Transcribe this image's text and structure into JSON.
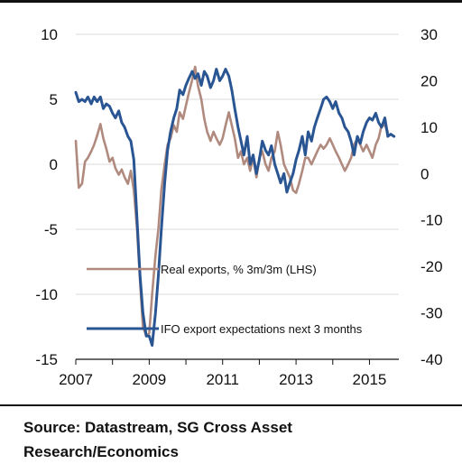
{
  "chart_data": {
    "type": "line",
    "x_ticks": [
      "2007",
      "2009",
      "2011",
      "2013",
      "2015"
    ],
    "xlim": [
      2007,
      2015.8
    ],
    "y_left": {
      "ticks": [
        "10",
        "5",
        "0",
        "-5",
        "-10",
        "-15"
      ],
      "ylim": [
        -15,
        10
      ]
    },
    "y_right": {
      "ticks": [
        "30",
        "20",
        "10",
        "0",
        "-10",
        "-20",
        "-30",
        "-40"
      ],
      "ylim": [
        -40,
        30
      ]
    },
    "grid": true,
    "legend_position": "lower-right",
    "series": [
      {
        "name": "Real exports, % 3m/3m (LHS)",
        "axis": "left",
        "color": "#b08a7e",
        "points": [
          [
            2007.0,
            1.8
          ],
          [
            2007.08,
            -1.8
          ],
          [
            2007.17,
            -1.5
          ],
          [
            2007.25,
            0.2
          ],
          [
            2007.33,
            0.5
          ],
          [
            2007.42,
            1.0
          ],
          [
            2007.5,
            1.5
          ],
          [
            2007.58,
            2.2
          ],
          [
            2007.67,
            3.1
          ],
          [
            2007.75,
            2.0
          ],
          [
            2007.83,
            1.2
          ],
          [
            2007.92,
            0.2
          ],
          [
            2008.0,
            0.5
          ],
          [
            2008.08,
            -0.3
          ],
          [
            2008.17,
            -0.8
          ],
          [
            2008.25,
            -0.4
          ],
          [
            2008.33,
            -1.0
          ],
          [
            2008.42,
            -1.5
          ],
          [
            2008.5,
            -0.5
          ],
          [
            2008.58,
            -2.0
          ],
          [
            2008.67,
            -5.0
          ],
          [
            2008.75,
            -9.0
          ],
          [
            2008.83,
            -12.5
          ],
          [
            2008.92,
            -13.2
          ],
          [
            2009.0,
            -13.0
          ],
          [
            2009.08,
            -10.0
          ],
          [
            2009.17,
            -7.0
          ],
          [
            2009.25,
            -5.0
          ],
          [
            2009.33,
            -2.0
          ],
          [
            2009.42,
            0.0
          ],
          [
            2009.5,
            1.5
          ],
          [
            2009.58,
            2.0
          ],
          [
            2009.67,
            3.0
          ],
          [
            2009.75,
            2.5
          ],
          [
            2009.83,
            4.0
          ],
          [
            2009.92,
            3.5
          ],
          [
            2010.0,
            4.5
          ],
          [
            2010.08,
            5.5
          ],
          [
            2010.17,
            6.5
          ],
          [
            2010.25,
            7.5
          ],
          [
            2010.33,
            6.0
          ],
          [
            2010.42,
            5.0
          ],
          [
            2010.5,
            3.5
          ],
          [
            2010.58,
            2.5
          ],
          [
            2010.67,
            1.8
          ],
          [
            2010.75,
            2.5
          ],
          [
            2010.83,
            2.0
          ],
          [
            2010.92,
            1.5
          ],
          [
            2011.0,
            2.0
          ],
          [
            2011.08,
            3.0
          ],
          [
            2011.17,
            4.0
          ],
          [
            2011.25,
            3.0
          ],
          [
            2011.33,
            2.0
          ],
          [
            2011.42,
            0.5
          ],
          [
            2011.5,
            1.0
          ],
          [
            2011.58,
            0.0
          ],
          [
            2011.67,
            0.5
          ],
          [
            2011.75,
            -0.5
          ],
          [
            2011.83,
            0.5
          ],
          [
            2011.92,
            -1.0
          ],
          [
            2012.0,
            0.5
          ],
          [
            2012.08,
            1.0
          ],
          [
            2012.17,
            0.0
          ],
          [
            2012.25,
            -0.5
          ],
          [
            2012.33,
            0.5
          ],
          [
            2012.42,
            1.0
          ],
          [
            2012.5,
            2.5
          ],
          [
            2012.58,
            1.5
          ],
          [
            2012.67,
            0.0
          ],
          [
            2012.75,
            -0.5
          ],
          [
            2012.83,
            -1.0
          ],
          [
            2012.92,
            -2.0
          ],
          [
            2013.0,
            -2.2
          ],
          [
            2013.08,
            -1.5
          ],
          [
            2013.17,
            -0.5
          ],
          [
            2013.25,
            0.5
          ],
          [
            2013.33,
            0.5
          ],
          [
            2013.42,
            0.0
          ],
          [
            2013.5,
            0.5
          ],
          [
            2013.58,
            1.0
          ],
          [
            2013.67,
            1.5
          ],
          [
            2013.75,
            1.2
          ],
          [
            2013.83,
            1.5
          ],
          [
            2013.92,
            2.0
          ],
          [
            2014.0,
            1.5
          ],
          [
            2014.08,
            1.0
          ],
          [
            2014.17,
            0.5
          ],
          [
            2014.25,
            0.0
          ],
          [
            2014.33,
            -0.5
          ],
          [
            2014.42,
            0.0
          ],
          [
            2014.5,
            0.5
          ],
          [
            2014.58,
            1.5
          ],
          [
            2014.67,
            2.0
          ],
          [
            2014.75,
            1.5
          ],
          [
            2014.83,
            1.0
          ],
          [
            2014.92,
            1.5
          ],
          [
            2015.0,
            1.0
          ],
          [
            2015.08,
            0.5
          ],
          [
            2015.17,
            1.5
          ],
          [
            2015.25,
            2.0
          ],
          [
            2015.33,
            3.0
          ],
          [
            2015.42,
            3.0
          ],
          [
            2015.5,
            2.5
          ]
        ]
      },
      {
        "name": "IFO export expectations next 3 months",
        "axis": "right",
        "color": "#2a5593",
        "points": [
          [
            2007.0,
            17.5
          ],
          [
            2007.08,
            15.5
          ],
          [
            2007.17,
            16.0
          ],
          [
            2007.25,
            15.5
          ],
          [
            2007.33,
            16.5
          ],
          [
            2007.42,
            15.0
          ],
          [
            2007.5,
            16.5
          ],
          [
            2007.58,
            15.5
          ],
          [
            2007.67,
            16.5
          ],
          [
            2007.75,
            14.0
          ],
          [
            2007.83,
            15.0
          ],
          [
            2007.92,
            14.5
          ],
          [
            2008.0,
            13.0
          ],
          [
            2008.08,
            12.0
          ],
          [
            2008.17,
            13.5
          ],
          [
            2008.25,
            11.0
          ],
          [
            2008.33,
            10.0
          ],
          [
            2008.42,
            8.0
          ],
          [
            2008.5,
            7.0
          ],
          [
            2008.58,
            3.0
          ],
          [
            2008.67,
            -10.0
          ],
          [
            2008.75,
            -22.0
          ],
          [
            2008.83,
            -30.0
          ],
          [
            2008.92,
            -35.0
          ],
          [
            2009.0,
            -35.0
          ],
          [
            2009.08,
            -37.0
          ],
          [
            2009.17,
            -30.0
          ],
          [
            2009.25,
            -22.0
          ],
          [
            2009.33,
            -12.0
          ],
          [
            2009.42,
            -2.0
          ],
          [
            2009.5,
            5.0
          ],
          [
            2009.58,
            9.0
          ],
          [
            2009.67,
            12.0
          ],
          [
            2009.75,
            14.0
          ],
          [
            2009.83,
            18.0
          ],
          [
            2009.92,
            17.0
          ],
          [
            2010.0,
            19.0
          ],
          [
            2010.08,
            20.5
          ],
          [
            2010.17,
            22.0
          ],
          [
            2010.25,
            20.5
          ],
          [
            2010.33,
            21.5
          ],
          [
            2010.42,
            19.0
          ],
          [
            2010.5,
            22.0
          ],
          [
            2010.58,
            21.0
          ],
          [
            2010.67,
            18.5
          ],
          [
            2010.75,
            20.0
          ],
          [
            2010.83,
            22.5
          ],
          [
            2010.92,
            20.0
          ],
          [
            2011.0,
            21.0
          ],
          [
            2011.08,
            22.5
          ],
          [
            2011.17,
            21.0
          ],
          [
            2011.25,
            18.0
          ],
          [
            2011.33,
            14.0
          ],
          [
            2011.42,
            10.0
          ],
          [
            2011.5,
            7.0
          ],
          [
            2011.58,
            4.0
          ],
          [
            2011.67,
            8.0
          ],
          [
            2011.75,
            2.0
          ],
          [
            2011.83,
            4.0
          ],
          [
            2011.92,
            0.0
          ],
          [
            2012.0,
            3.0
          ],
          [
            2012.08,
            7.0
          ],
          [
            2012.17,
            5.0
          ],
          [
            2012.25,
            4.0
          ],
          [
            2012.33,
            6.0
          ],
          [
            2012.42,
            2.0
          ],
          [
            2012.5,
            0.0
          ],
          [
            2012.58,
            -2.0
          ],
          [
            2012.67,
            0.0
          ],
          [
            2012.75,
            -4.0
          ],
          [
            2012.83,
            -2.0
          ],
          [
            2012.92,
            0.0
          ],
          [
            2013.0,
            3.0
          ],
          [
            2013.08,
            5.0
          ],
          [
            2013.17,
            8.0
          ],
          [
            2013.25,
            4.0
          ],
          [
            2013.33,
            9.0
          ],
          [
            2013.42,
            7.0
          ],
          [
            2013.5,
            10.0
          ],
          [
            2013.58,
            12.0
          ],
          [
            2013.67,
            14.0
          ],
          [
            2013.75,
            16.0
          ],
          [
            2013.83,
            16.5
          ],
          [
            2013.92,
            15.5
          ],
          [
            2014.0,
            14.0
          ],
          [
            2014.08,
            15.5
          ],
          [
            2014.17,
            13.0
          ],
          [
            2014.25,
            12.0
          ],
          [
            2014.33,
            10.0
          ],
          [
            2014.42,
            9.0
          ],
          [
            2014.5,
            7.0
          ],
          [
            2014.58,
            4.0
          ],
          [
            2014.67,
            8.0
          ],
          [
            2014.75,
            6.5
          ],
          [
            2014.83,
            9.0
          ],
          [
            2014.92,
            11.0
          ],
          [
            2015.0,
            12.0
          ],
          [
            2015.08,
            11.5
          ],
          [
            2015.17,
            13.0
          ],
          [
            2015.25,
            11.0
          ],
          [
            2015.33,
            10.0
          ],
          [
            2015.42,
            12.0
          ],
          [
            2015.5,
            8.0
          ],
          [
            2015.58,
            8.5
          ],
          [
            2015.67,
            8.0
          ]
        ]
      }
    ]
  },
  "source_text": "Source: Datastream, SG Cross Asset Research/Economics"
}
